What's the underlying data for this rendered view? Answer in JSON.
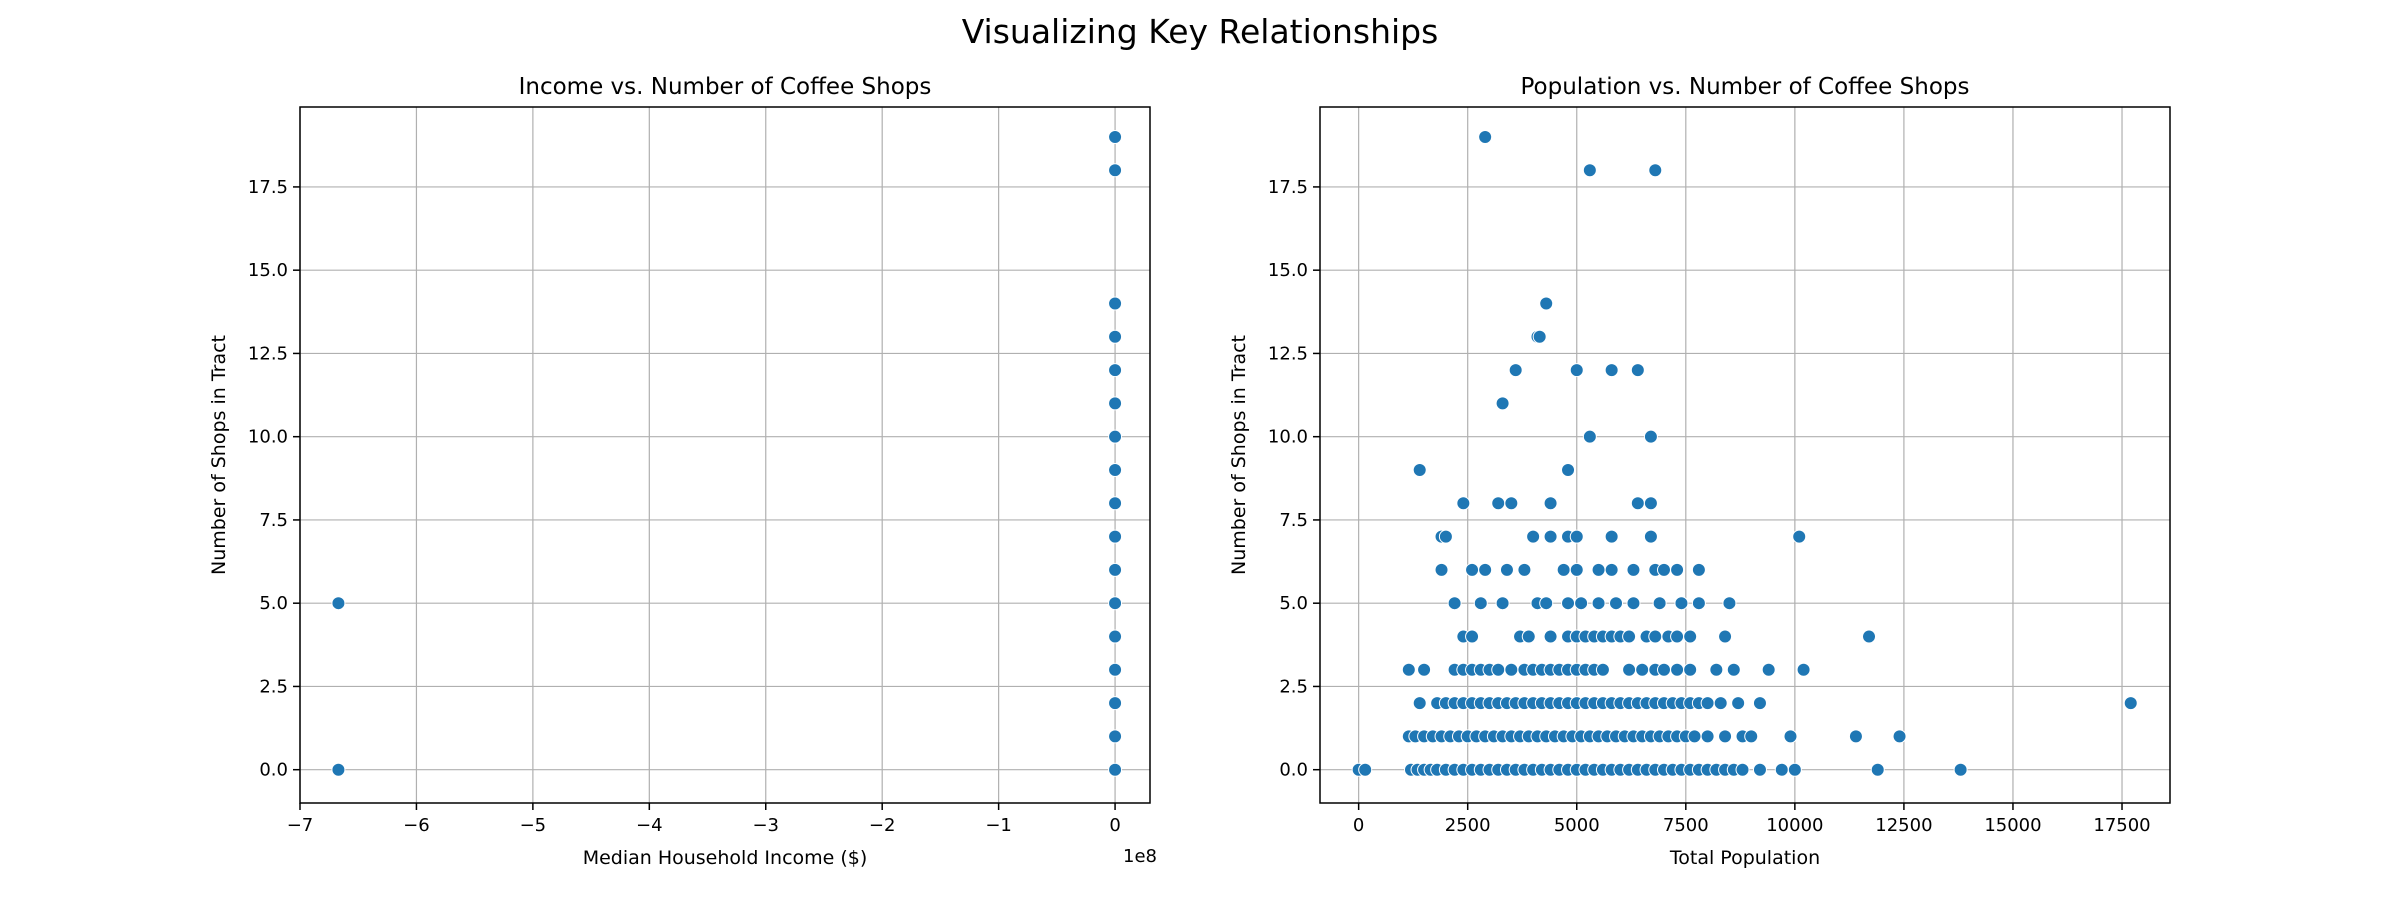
{
  "figure": {
    "title": "Visualizing Key Relationships"
  },
  "chart_data": [
    {
      "type": "scatter",
      "title": "Income vs. Number of Coffee Shops",
      "xlabel": "Median Household Income ($)",
      "ylabel": "Number of Shops in Tract",
      "x_offset_label": "1e8",
      "xlim": [
        -7.0,
        0.3
      ],
      "ylim": [
        -1.0,
        19.9
      ],
      "grid": true,
      "color": "#1f77b4",
      "x_ticks": [
        -7,
        -6,
        -5,
        -4,
        -3,
        -2,
        -1,
        0
      ],
      "x_tick_labels": [
        "−7",
        "−6",
        "−5",
        "−4",
        "−3",
        "−2",
        "−1",
        "0"
      ],
      "y_ticks": [
        0,
        2.5,
        5,
        7.5,
        10,
        12.5,
        15,
        17.5
      ],
      "y_tick_labels": [
        "0.0",
        "2.5",
        "5.0",
        "7.5",
        "10.0",
        "12.5",
        "15.0",
        "17.5"
      ],
      "points": [
        [
          -6.67,
          0
        ],
        [
          -6.67,
          5
        ],
        [
          0,
          0
        ],
        [
          0,
          1
        ],
        [
          0,
          2
        ],
        [
          0,
          3
        ],
        [
          0,
          4
        ],
        [
          0,
          5
        ],
        [
          0,
          6
        ],
        [
          0,
          7
        ],
        [
          0,
          8
        ],
        [
          0,
          9
        ],
        [
          0,
          10
        ],
        [
          0,
          11
        ],
        [
          0,
          12
        ],
        [
          0,
          13
        ],
        [
          0,
          14
        ],
        [
          0,
          18
        ],
        [
          0,
          19
        ]
      ]
    },
    {
      "type": "scatter",
      "title": "Population vs. Number of Coffee Shops",
      "xlabel": "Total Population",
      "ylabel": "Number of Shops in Tract",
      "xlim": [
        -886,
        18600
      ],
      "ylim": [
        -1.0,
        19.9
      ],
      "grid": true,
      "color": "#1f77b4",
      "x_ticks": [
        0,
        2500,
        5000,
        7500,
        10000,
        12500,
        15000,
        17500
      ],
      "x_tick_labels": [
        "0",
        "2500",
        "5000",
        "7500",
        "10000",
        "12500",
        "15000",
        "17500"
      ],
      "y_ticks": [
        0,
        2.5,
        5,
        7.5,
        10,
        12.5,
        15,
        17.5
      ],
      "y_tick_labels": [
        "0.0",
        "2.5",
        "5.0",
        "7.5",
        "10.0",
        "12.5",
        "15.0",
        "17.5"
      ],
      "points": [
        [
          0,
          0
        ],
        [
          150,
          0
        ],
        [
          1200,
          0
        ],
        [
          1350,
          0
        ],
        [
          1500,
          0
        ],
        [
          1650,
          0
        ],
        [
          1800,
          0
        ],
        [
          2000,
          0
        ],
        [
          2200,
          0
        ],
        [
          2400,
          0
        ],
        [
          2600,
          0
        ],
        [
          2800,
          0
        ],
        [
          3000,
          0
        ],
        [
          3200,
          0
        ],
        [
          3400,
          0
        ],
        [
          3600,
          0
        ],
        [
          3800,
          0
        ],
        [
          4000,
          0
        ],
        [
          4200,
          0
        ],
        [
          4400,
          0
        ],
        [
          4600,
          0
        ],
        [
          4800,
          0
        ],
        [
          5000,
          0
        ],
        [
          5200,
          0
        ],
        [
          5400,
          0
        ],
        [
          5600,
          0
        ],
        [
          5800,
          0
        ],
        [
          6000,
          0
        ],
        [
          6200,
          0
        ],
        [
          6400,
          0
        ],
        [
          6600,
          0
        ],
        [
          6800,
          0
        ],
        [
          7000,
          0
        ],
        [
          7200,
          0
        ],
        [
          7400,
          0
        ],
        [
          7600,
          0
        ],
        [
          7800,
          0
        ],
        [
          8000,
          0
        ],
        [
          8200,
          0
        ],
        [
          8400,
          0
        ],
        [
          8600,
          0
        ],
        [
          8800,
          0
        ],
        [
          9200,
          0
        ],
        [
          9700,
          0
        ],
        [
          10000,
          0
        ],
        [
          11900,
          0
        ],
        [
          13800,
          0
        ],
        [
          1150,
          1
        ],
        [
          1300,
          1
        ],
        [
          1500,
          1
        ],
        [
          1700,
          1
        ],
        [
          1900,
          1
        ],
        [
          2100,
          1
        ],
        [
          2300,
          1
        ],
        [
          2500,
          1
        ],
        [
          2700,
          1
        ],
        [
          2900,
          1
        ],
        [
          3100,
          1
        ],
        [
          3300,
          1
        ],
        [
          3500,
          1
        ],
        [
          3700,
          1
        ],
        [
          3900,
          1
        ],
        [
          4100,
          1
        ],
        [
          4300,
          1
        ],
        [
          4500,
          1
        ],
        [
          4700,
          1
        ],
        [
          4900,
          1
        ],
        [
          5100,
          1
        ],
        [
          5300,
          1
        ],
        [
          5500,
          1
        ],
        [
          5700,
          1
        ],
        [
          5900,
          1
        ],
        [
          6100,
          1
        ],
        [
          6300,
          1
        ],
        [
          6500,
          1
        ],
        [
          6700,
          1
        ],
        [
          6900,
          1
        ],
        [
          7100,
          1
        ],
        [
          7300,
          1
        ],
        [
          7500,
          1
        ],
        [
          7700,
          1
        ],
        [
          8000,
          1
        ],
        [
          8400,
          1
        ],
        [
          8800,
          1
        ],
        [
          9000,
          1
        ],
        [
          9900,
          1
        ],
        [
          11400,
          1
        ],
        [
          12400,
          1
        ],
        [
          1400,
          2
        ],
        [
          1800,
          2
        ],
        [
          2000,
          2
        ],
        [
          2200,
          2
        ],
        [
          2400,
          2
        ],
        [
          2600,
          2
        ],
        [
          2800,
          2
        ],
        [
          3000,
          2
        ],
        [
          3200,
          2
        ],
        [
          3400,
          2
        ],
        [
          3600,
          2
        ],
        [
          3800,
          2
        ],
        [
          4000,
          2
        ],
        [
          4200,
          2
        ],
        [
          4400,
          2
        ],
        [
          4600,
          2
        ],
        [
          4800,
          2
        ],
        [
          5000,
          2
        ],
        [
          5200,
          2
        ],
        [
          5400,
          2
        ],
        [
          5600,
          2
        ],
        [
          5800,
          2
        ],
        [
          6000,
          2
        ],
        [
          6200,
          2
        ],
        [
          6400,
          2
        ],
        [
          6600,
          2
        ],
        [
          6800,
          2
        ],
        [
          7000,
          2
        ],
        [
          7200,
          2
        ],
        [
          7400,
          2
        ],
        [
          7600,
          2
        ],
        [
          7800,
          2
        ],
        [
          8000,
          2
        ],
        [
          8300,
          2
        ],
        [
          8700,
          2
        ],
        [
          9200,
          2
        ],
        [
          17700,
          2
        ],
        [
          1150,
          3
        ],
        [
          1500,
          3
        ],
        [
          2200,
          3
        ],
        [
          2400,
          3
        ],
        [
          2600,
          3
        ],
        [
          2800,
          3
        ],
        [
          3000,
          3
        ],
        [
          3200,
          3
        ],
        [
          3500,
          3
        ],
        [
          3800,
          3
        ],
        [
          4000,
          3
        ],
        [
          4200,
          3
        ],
        [
          4400,
          3
        ],
        [
          4600,
          3
        ],
        [
          4800,
          3
        ],
        [
          5000,
          3
        ],
        [
          5200,
          3
        ],
        [
          5400,
          3
        ],
        [
          5600,
          3
        ],
        [
          6200,
          3
        ],
        [
          6500,
          3
        ],
        [
          6800,
          3
        ],
        [
          7000,
          3
        ],
        [
          7300,
          3
        ],
        [
          7600,
          3
        ],
        [
          8200,
          3
        ],
        [
          8600,
          3
        ],
        [
          9400,
          3
        ],
        [
          10200,
          3
        ],
        [
          2400,
          4
        ],
        [
          2600,
          4
        ],
        [
          3700,
          4
        ],
        [
          3900,
          4
        ],
        [
          4400,
          4
        ],
        [
          4800,
          4
        ],
        [
          5000,
          4
        ],
        [
          5200,
          4
        ],
        [
          5400,
          4
        ],
        [
          5600,
          4
        ],
        [
          5800,
          4
        ],
        [
          6000,
          4
        ],
        [
          6200,
          4
        ],
        [
          6600,
          4
        ],
        [
          6800,
          4
        ],
        [
          7100,
          4
        ],
        [
          7300,
          4
        ],
        [
          7600,
          4
        ],
        [
          8400,
          4
        ],
        [
          11700,
          4
        ],
        [
          2200,
          5
        ],
        [
          2800,
          5
        ],
        [
          3300,
          5
        ],
        [
          4100,
          5
        ],
        [
          4300,
          5
        ],
        [
          4800,
          5
        ],
        [
          5100,
          5
        ],
        [
          5500,
          5
        ],
        [
          5900,
          5
        ],
        [
          6300,
          5
        ],
        [
          6900,
          5
        ],
        [
          7400,
          5
        ],
        [
          7800,
          5
        ],
        [
          8500,
          5
        ],
        [
          1900,
          6
        ],
        [
          2600,
          6
        ],
        [
          2900,
          6
        ],
        [
          3400,
          6
        ],
        [
          3800,
          6
        ],
        [
          4700,
          6
        ],
        [
          5000,
          6
        ],
        [
          5500,
          6
        ],
        [
          5800,
          6
        ],
        [
          6300,
          6
        ],
        [
          6800,
          6
        ],
        [
          7000,
          6
        ],
        [
          7300,
          6
        ],
        [
          7800,
          6
        ],
        [
          1900,
          7
        ],
        [
          2000,
          7
        ],
        [
          4000,
          7
        ],
        [
          4400,
          7
        ],
        [
          4800,
          7
        ],
        [
          5000,
          7
        ],
        [
          5800,
          7
        ],
        [
          6700,
          7
        ],
        [
          10100,
          7
        ],
        [
          2400,
          8
        ],
        [
          3200,
          8
        ],
        [
          3500,
          8
        ],
        [
          4400,
          8
        ],
        [
          6400,
          8
        ],
        [
          6700,
          8
        ],
        [
          1400,
          9
        ],
        [
          4800,
          9
        ],
        [
          5300,
          10
        ],
        [
          6700,
          10
        ],
        [
          3300,
          11
        ],
        [
          3600,
          12
        ],
        [
          5000,
          12
        ],
        [
          5800,
          12
        ],
        [
          6400,
          12
        ],
        [
          4100,
          13
        ],
        [
          4150,
          13
        ],
        [
          4300,
          14
        ],
        [
          5300,
          18
        ],
        [
          6800,
          18
        ],
        [
          2900,
          19
        ]
      ]
    }
  ]
}
